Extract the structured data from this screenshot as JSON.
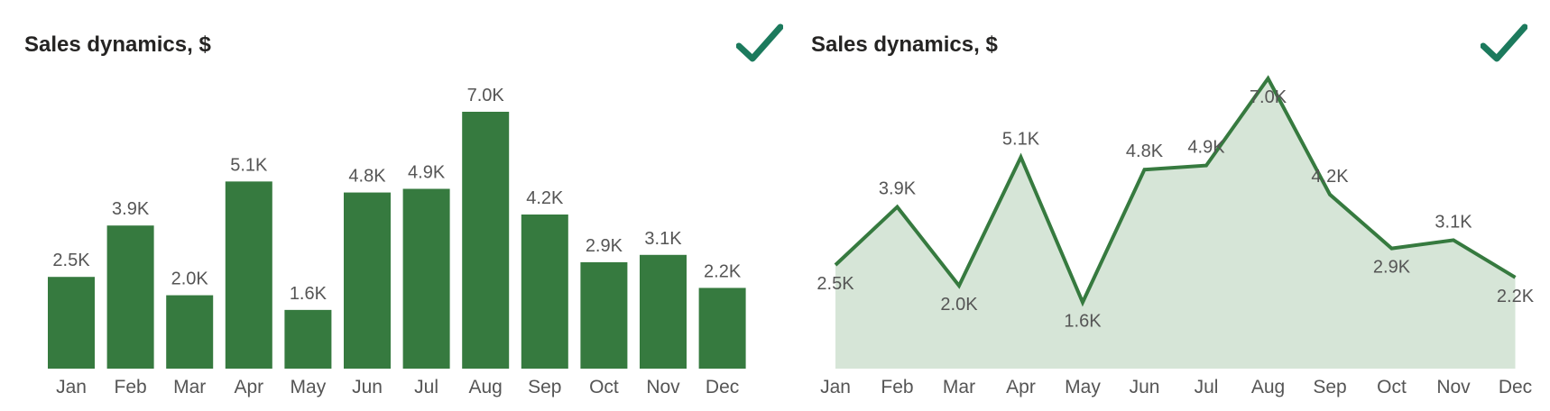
{
  "colors": {
    "bar": "#367a3f",
    "line": "#367a3f",
    "area": "#d6e5d7",
    "check": "#1c7a5d",
    "label": "#555555"
  },
  "icons": {
    "status": "checkmark-icon"
  },
  "chart_data": [
    {
      "type": "bar",
      "title": "Sales dynamics, $",
      "categories": [
        "Jan",
        "Feb",
        "Mar",
        "Apr",
        "May",
        "Jun",
        "Jul",
        "Aug",
        "Sep",
        "Oct",
        "Nov",
        "Dec"
      ],
      "values": [
        2500,
        3900,
        2000,
        5100,
        1600,
        4800,
        4900,
        7000,
        4200,
        2900,
        3100,
        2200
      ],
      "data_labels": [
        "2.5K",
        "3.9K",
        "2.0K",
        "5.1K",
        "1.6K",
        "4.8K",
        "4.9K",
        "7.0K",
        "4.2K",
        "2.9K",
        "3.1K",
        "2.2K"
      ],
      "ylim": [
        0,
        7000
      ],
      "grid": false,
      "legend": "none"
    },
    {
      "type": "area",
      "title": "Sales dynamics, $",
      "categories": [
        "Jan",
        "Feb",
        "Mar",
        "Apr",
        "May",
        "Jun",
        "Jul",
        "Aug",
        "Sep",
        "Oct",
        "Nov",
        "Dec"
      ],
      "values": [
        2500,
        3900,
        2000,
        5100,
        1600,
        4800,
        4900,
        7000,
        4200,
        2900,
        3100,
        2200
      ],
      "data_labels": [
        "2.5K",
        "3.9K",
        "2.0K",
        "5.1K",
        "1.6K",
        "4.8K",
        "4.9K",
        "7.0K",
        "4.2K",
        "2.9K",
        "3.1K",
        "2.2K"
      ],
      "label_positions": [
        "below",
        "above",
        "below",
        "above",
        "below",
        "above",
        "above",
        "below",
        "above",
        "below",
        "above",
        "below"
      ],
      "ylim": [
        0,
        7000
      ],
      "grid": false,
      "legend": "none"
    }
  ]
}
